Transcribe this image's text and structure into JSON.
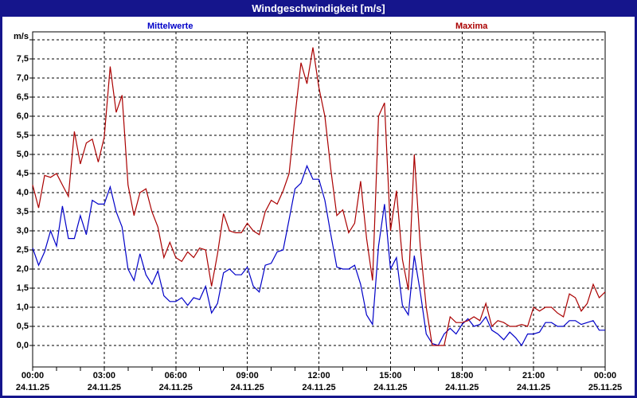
{
  "window": {
    "title": "Windgeschwindigkeit [m/s]"
  },
  "legend": {
    "mean_label": "Mittelwerte",
    "max_label": "Maxima",
    "mean_color": "#0000c8",
    "max_color": "#aa0000"
  },
  "y_axis": {
    "unit_label": "m/s",
    "tick_labels": [
      "0,0",
      "0,5",
      "1,0",
      "1,5",
      "2,0",
      "2,5",
      "3,0",
      "3,5",
      "4,0",
      "4,5",
      "5,0",
      "5,5",
      "6,0",
      "6,5",
      "7,0",
      "7,5"
    ]
  },
  "x_axis": {
    "ticks": [
      {
        "hour": 0,
        "time": "00:00",
        "date": "24.11.25"
      },
      {
        "hour": 3,
        "time": "03:00",
        "date": "24.11.25"
      },
      {
        "hour": 6,
        "time": "06:00",
        "date": "24.11.25"
      },
      {
        "hour": 9,
        "time": "09:00",
        "date": "24.11.25"
      },
      {
        "hour": 12,
        "time": "12:00",
        "date": "24.11.25"
      },
      {
        "hour": 15,
        "time": "15:00",
        "date": "24.11.25"
      },
      {
        "hour": 18,
        "time": "18:00",
        "date": "24.11.25"
      },
      {
        "hour": 21,
        "time": "21:00",
        "date": "24.11.25"
      },
      {
        "hour": 24,
        "time": "00:00",
        "date": "25.11.25"
      }
    ]
  },
  "colors": {
    "frame": "#15158c",
    "header_bg": "#15158c",
    "header_text": "#ffffff",
    "grid": "#000000",
    "plot_bg": "#ffffff"
  },
  "chart_data": {
    "type": "line",
    "title": "Windgeschwindigkeit [m/s]",
    "ylabel": "m/s",
    "xlim_hours": [
      0,
      24
    ],
    "ylim": [
      0,
      8
    ],
    "y_gridline_step": 0.5,
    "x_gridline_step_hours": 3,
    "grid": "dashed",
    "legend_position": "top",
    "x_start_hour": 0,
    "x_step_hours": 0.25,
    "series": [
      {
        "name": "Mittelwerte",
        "color": "#0000c8",
        "values": [
          2.55,
          2.1,
          2.45,
          3.0,
          2.6,
          3.65,
          2.8,
          2.8,
          3.4,
          2.9,
          3.8,
          3.7,
          3.7,
          4.15,
          3.5,
          3.1,
          2.0,
          1.7,
          2.4,
          1.85,
          1.6,
          1.95,
          1.3,
          1.15,
          1.15,
          1.25,
          1.05,
          1.25,
          1.2,
          1.55,
          0.85,
          1.1,
          1.9,
          2.0,
          1.85,
          1.85,
          2.05,
          1.55,
          1.4,
          2.1,
          2.15,
          2.45,
          2.5,
          3.3,
          4.1,
          4.25,
          4.7,
          4.35,
          4.35,
          3.8,
          2.9,
          2.05,
          2.0,
          2.0,
          2.1,
          1.6,
          0.8,
          0.55,
          2.6,
          3.7,
          2.0,
          2.3,
          1.05,
          0.8,
          2.35,
          1.4,
          0.3,
          0.05,
          0.0,
          0.3,
          0.45,
          0.3,
          0.55,
          0.7,
          0.5,
          0.55,
          0.75,
          0.4,
          0.3,
          0.15,
          0.35,
          0.2,
          0.0,
          0.3,
          0.3,
          0.35,
          0.6,
          0.6,
          0.5,
          0.5,
          0.65,
          0.65,
          0.55,
          0.6,
          0.65,
          0.4,
          0.4
        ]
      },
      {
        "name": "Maxima",
        "color": "#aa0000",
        "values": [
          4.2,
          3.6,
          4.45,
          4.4,
          4.5,
          4.2,
          3.9,
          5.6,
          4.75,
          5.3,
          5.4,
          4.8,
          5.45,
          7.3,
          6.1,
          6.55,
          4.2,
          3.4,
          4.0,
          4.1,
          3.5,
          3.1,
          2.3,
          2.7,
          2.3,
          2.2,
          2.45,
          2.3,
          2.55,
          2.5,
          1.55,
          2.4,
          3.45,
          3.0,
          2.95,
          2.95,
          3.2,
          3.0,
          2.9,
          3.5,
          3.8,
          3.7,
          4.05,
          4.5,
          6.0,
          7.4,
          6.85,
          7.8,
          6.75,
          6.0,
          4.6,
          3.4,
          3.55,
          2.95,
          3.2,
          4.3,
          2.8,
          1.7,
          6.0,
          6.35,
          3.0,
          4.05,
          2.25,
          1.45,
          5.0,
          2.6,
          1.0,
          0.0,
          0.0,
          0.0,
          0.75,
          0.6,
          0.6,
          0.65,
          0.75,
          0.65,
          1.1,
          0.5,
          0.65,
          0.6,
          0.5,
          0.5,
          0.55,
          0.5,
          1.0,
          0.9,
          1.0,
          1.0,
          0.85,
          0.75,
          1.35,
          1.25,
          0.9,
          1.1,
          1.6,
          1.25,
          1.4
        ]
      }
    ]
  }
}
